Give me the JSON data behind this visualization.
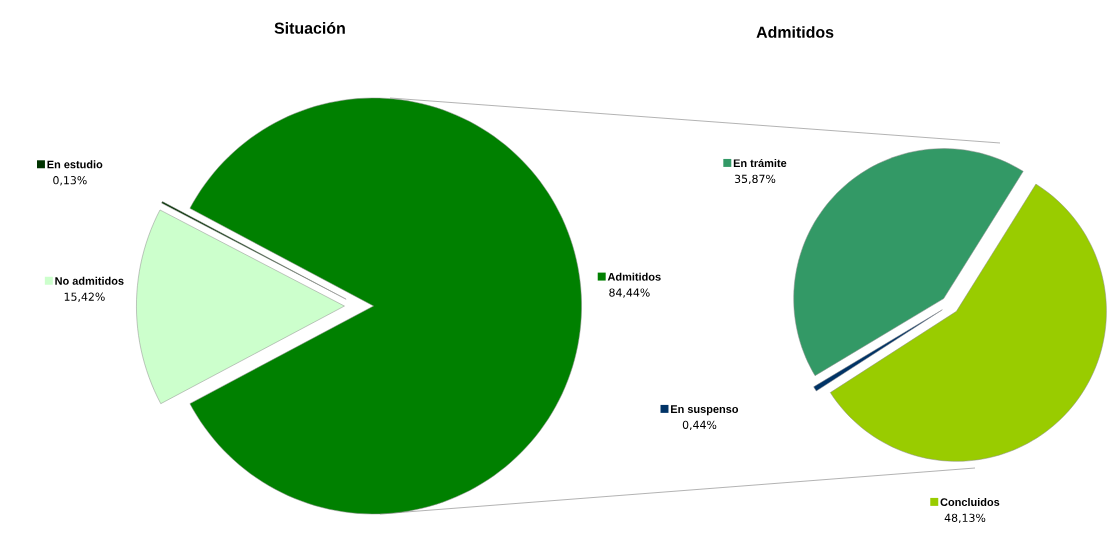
{
  "chart_data": [
    {
      "type": "pie",
      "title": "Situación",
      "categories": [
        "Admitidos",
        "En estudio",
        "No admitidos"
      ],
      "values": [
        84.44,
        0.13,
        15.42
      ],
      "colors": [
        "#008000",
        "#003300",
        "#ccffcc"
      ],
      "value_labels": [
        "84,44%",
        "0,13%",
        "15,42%"
      ],
      "legend": "left"
    },
    {
      "type": "pie",
      "title": "Admitidos",
      "categories": [
        "En trámite",
        "En suspenso",
        "Concluidos"
      ],
      "values": [
        35.87,
        0.44,
        48.13
      ],
      "colors": [
        "#339966",
        "#003366",
        "#99cc00"
      ],
      "value_labels": [
        "35,87%",
        "0,44%",
        "48,13%"
      ],
      "legend": "left"
    }
  ]
}
